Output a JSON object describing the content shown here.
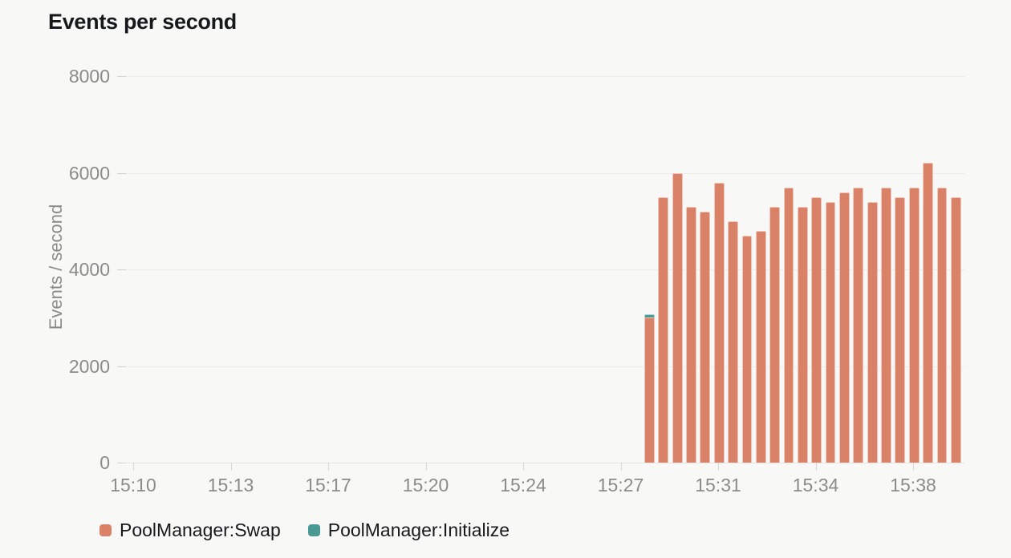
{
  "title": "Events per second",
  "colors": {
    "background": "#f8f8f7",
    "gridline": "#ececea",
    "axis_text": "#8b8b8b",
    "title_text": "#17191c",
    "swap": "#d98268",
    "initialize": "#4a9a93"
  },
  "chart_data": {
    "type": "bar",
    "title": "Events per second",
    "xlabel": "",
    "ylabel": "Events / second",
    "ylim": [
      0,
      8000
    ],
    "y_ticks": [
      0,
      2000,
      4000,
      6000,
      8000
    ],
    "x_tick_labels": [
      "15:10",
      "15:13",
      "15:17",
      "15:20",
      "15:24",
      "15:27",
      "15:31",
      "15:34",
      "15:38"
    ],
    "grid": true,
    "stacked": true,
    "legend_position": "bottom-left",
    "x": [
      "15:28:30",
      "15:29:00",
      "15:29:30",
      "15:30:00",
      "15:30:30",
      "15:31:00",
      "15:31:30",
      "15:32:00",
      "15:32:30",
      "15:33:00",
      "15:33:30",
      "15:34:00",
      "15:34:30",
      "15:35:00",
      "15:35:30",
      "15:36:00",
      "15:36:30",
      "15:37:00",
      "15:37:30",
      "15:38:00",
      "15:38:30",
      "15:39:00",
      "15:39:30"
    ],
    "series": [
      {
        "name": "PoolManager:Swap",
        "color": "#d98268",
        "values": [
          3000,
          5500,
          6000,
          5300,
          5200,
          5800,
          5000,
          4700,
          4800,
          5300,
          5700,
          5300,
          5500,
          5400,
          5600,
          5700,
          5400,
          5700,
          5500,
          5700,
          6200,
          5700,
          5500
        ]
      },
      {
        "name": "PoolManager:Initialize",
        "color": "#4a9a93",
        "values": [
          70,
          0,
          0,
          0,
          0,
          0,
          0,
          0,
          0,
          0,
          0,
          0,
          0,
          0,
          0,
          0,
          0,
          0,
          0,
          0,
          0,
          0,
          0
        ]
      }
    ]
  }
}
